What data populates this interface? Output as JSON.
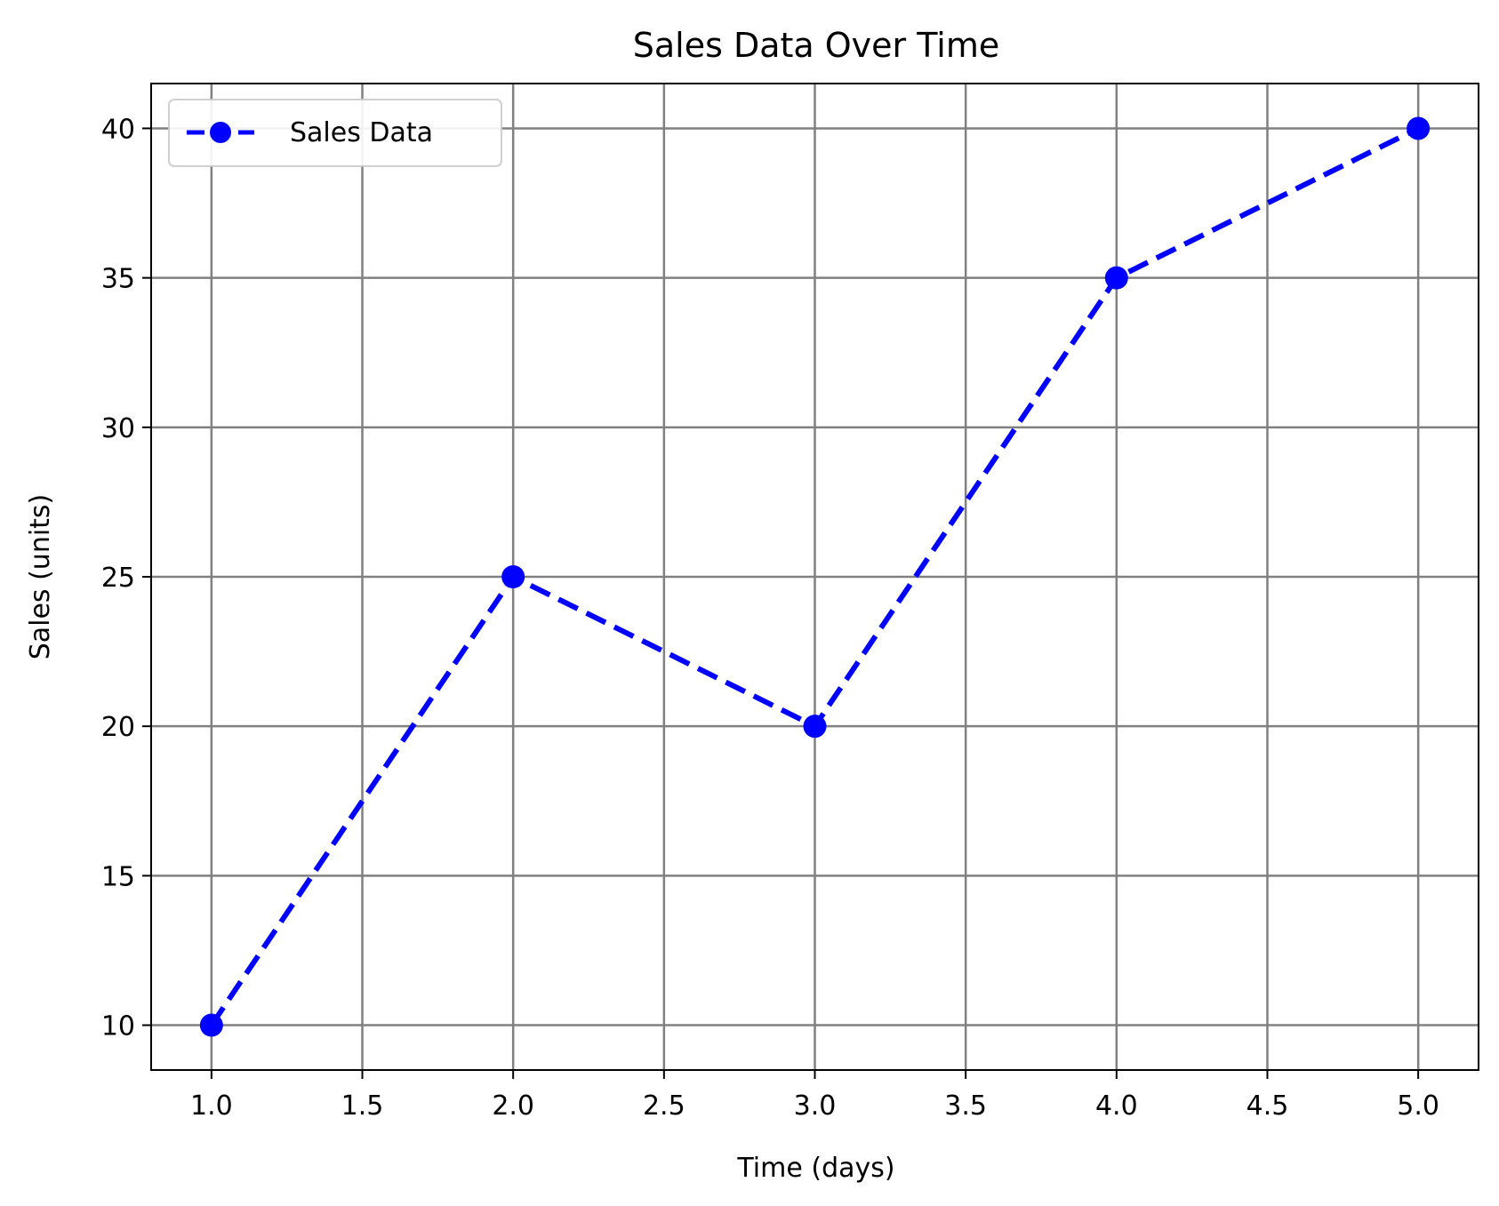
{
  "chart_data": {
    "type": "line",
    "title": "Sales Data Over Time",
    "xlabel": "Time (days)",
    "ylabel": "Sales (units)",
    "x": [
      1.0,
      2.0,
      3.0,
      4.0,
      5.0
    ],
    "series": [
      {
        "name": "Sales Data",
        "values": [
          10,
          25,
          20,
          35,
          40
        ],
        "color": "#0000ff",
        "line_style": "dashed",
        "marker": "circle"
      }
    ],
    "xlim": [
      0.8,
      5.2
    ],
    "ylim": [
      8.5,
      41.5
    ],
    "x_ticks": [
      1.0,
      1.5,
      2.0,
      2.5,
      3.0,
      3.5,
      4.0,
      4.5,
      5.0
    ],
    "x_tick_labels": [
      "1.0",
      "1.5",
      "2.0",
      "2.5",
      "3.0",
      "3.5",
      "4.0",
      "4.5",
      "5.0"
    ],
    "y_ticks": [
      10,
      15,
      20,
      25,
      30,
      35,
      40
    ],
    "y_tick_labels": [
      "10",
      "15",
      "20",
      "25",
      "30",
      "35",
      "40"
    ],
    "grid": true,
    "grid_color": "#808080",
    "legend_position": "top-left"
  }
}
